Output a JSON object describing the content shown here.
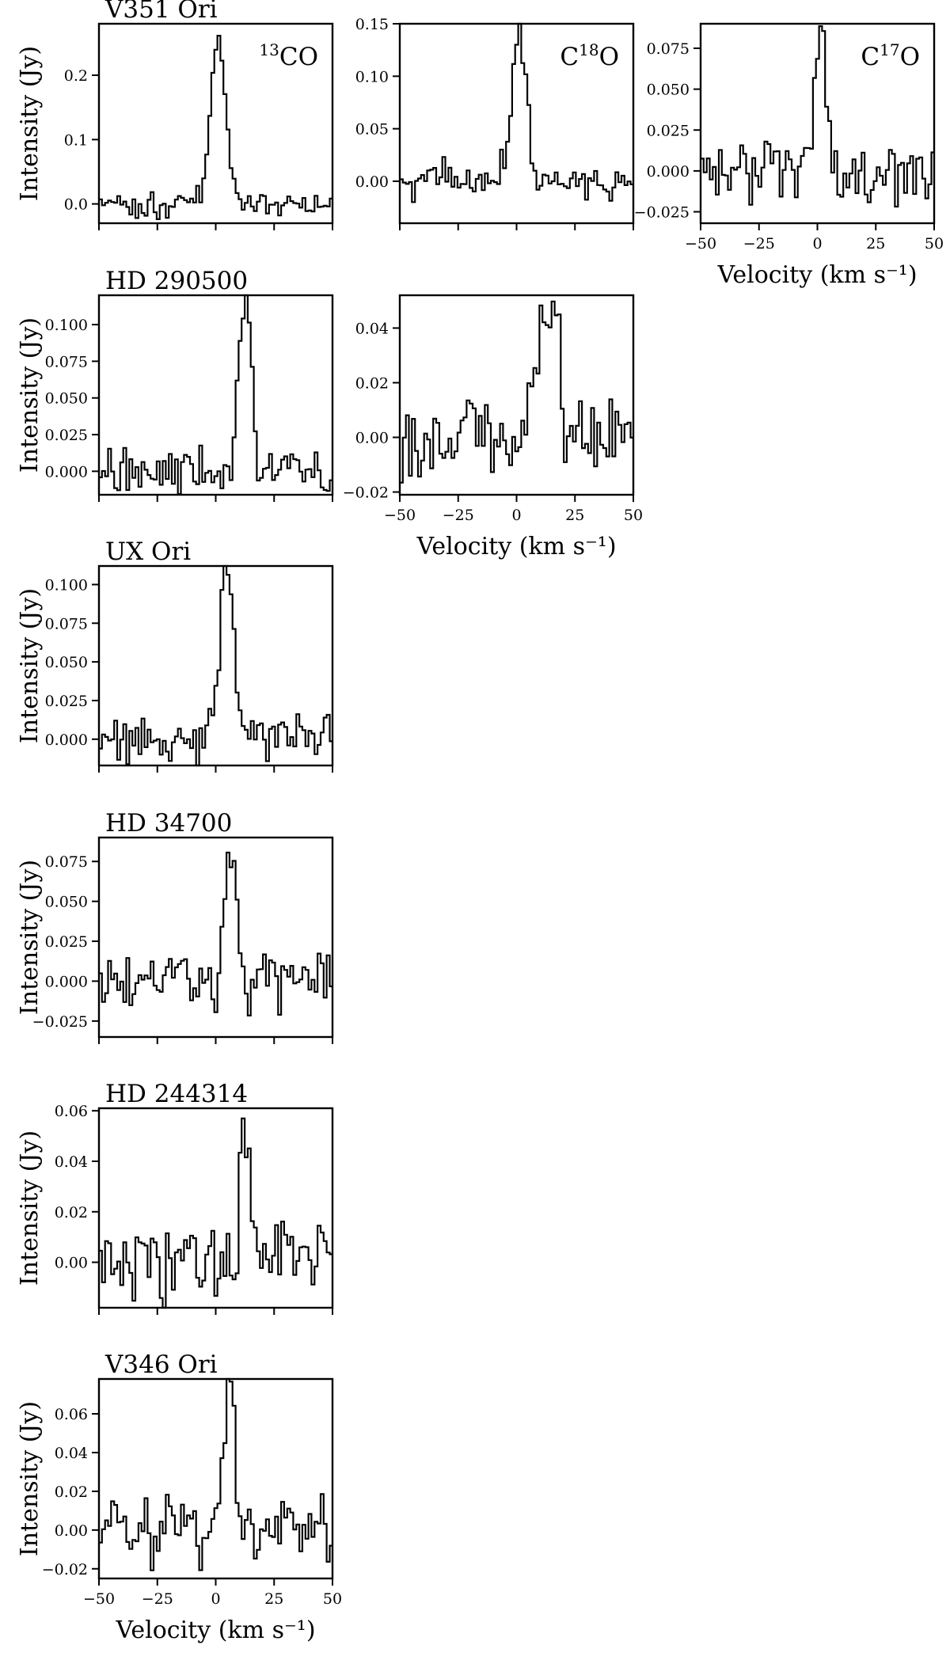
{
  "figure": {
    "ylabel": "Intensity (Jy)",
    "xlabel": "Velocity (km s⁻¹)"
  },
  "chart_data": [
    {
      "type": "line",
      "title": "V351 Ori",
      "line_label": {
        "pre": "13",
        "main": "CO",
        "post": ""
      },
      "xlim": [
        -50,
        50
      ],
      "ylim": [
        -0.03,
        0.28
      ],
      "yticks": [
        "0.0",
        "0.1",
        "0.2"
      ],
      "show_xticklabels": false,
      "show_xlabel": false,
      "series": [
        {
          "peak": 0.262,
          "center": 0.5,
          "width": 3.2,
          "noise": 0.012,
          "base": 0.0,
          "seed": 11
        }
      ]
    },
    {
      "type": "line",
      "title": "",
      "line_label": {
        "pre": "C",
        "main": "18",
        "post": "O"
      },
      "xlim": [
        -50,
        50
      ],
      "ylim": [
        -0.04,
        0.15
      ],
      "yticks": [
        "0.00",
        "0.05",
        "0.10",
        "0.15"
      ],
      "show_xticklabels": false,
      "show_xlabel": false,
      "series": [
        {
          "peak": 0.143,
          "center": 0.5,
          "width": 3.0,
          "noise": 0.011,
          "base": 0.0,
          "seed": 23
        }
      ]
    },
    {
      "type": "line",
      "title": "",
      "line_label": {
        "pre": "C",
        "main": "17",
        "post": "O"
      },
      "xlim": [
        -50,
        50
      ],
      "ylim": [
        -0.032,
        0.09
      ],
      "yticks": [
        "−0.025",
        "0.000",
        "0.025",
        "0.050",
        "0.075"
      ],
      "xticks": [
        "−50",
        "−25",
        "0",
        "25",
        "50"
      ],
      "show_xticklabels": true,
      "show_xlabel": true,
      "series": [
        {
          "peak": 0.084,
          "center": 0.5,
          "width": 2.6,
          "noise": 0.014,
          "base": 0.0,
          "seed": 37
        }
      ]
    },
    {
      "type": "line",
      "title": "HD 290500",
      "line_label": {
        "pre": "",
        "main": "",
        "post": ""
      },
      "xlim": [
        -50,
        50
      ],
      "ylim": [
        -0.016,
        0.12
      ],
      "yticks": [
        "0.000",
        "0.025",
        "0.050",
        "0.075",
        "0.100"
      ],
      "show_xticklabels": false,
      "show_xlabel": false,
      "series": [
        {
          "peak": 0.112,
          "center": 12.0,
          "width": 2.8,
          "noise": 0.011,
          "base": 0.0,
          "seed": 41
        }
      ]
    },
    {
      "type": "line",
      "title": "",
      "line_label": {
        "pre": "",
        "main": "",
        "post": ""
      },
      "xlim": [
        -50,
        50
      ],
      "ylim": [
        -0.021,
        0.052
      ],
      "yticks": [
        "−0.02",
        "0.00",
        "0.02",
        "0.04"
      ],
      "xticks": [
        "−50",
        "−25",
        "0",
        "25",
        "50"
      ],
      "show_xticklabels": true,
      "show_xlabel": true,
      "series": [
        {
          "peak": 0.049,
          "center": 12.0,
          "width": 4.5,
          "noise": 0.011,
          "base": 0.0,
          "seed": 53
        }
      ]
    },
    {
      "type": "line",
      "title": "UX Ori",
      "line_label": {
        "pre": "",
        "main": "",
        "post": ""
      },
      "xlim": [
        -50,
        50
      ],
      "ylim": [
        -0.017,
        0.112
      ],
      "yticks": [
        "0.000",
        "0.025",
        "0.050",
        "0.075",
        "0.100"
      ],
      "show_xticklabels": false,
      "show_xlabel": false,
      "series": [
        {
          "peak": 0.104,
          "center": 4.0,
          "width": 3.2,
          "noise": 0.01,
          "base": 0.0,
          "seed": 67
        }
      ]
    },
    {
      "type": "line",
      "title": "HD 34700",
      "line_label": {
        "pre": "",
        "main": "",
        "post": ""
      },
      "xlim": [
        -50,
        50
      ],
      "ylim": [
        -0.035,
        0.09
      ],
      "yticks": [
        "−0.025",
        "0.000",
        "0.025",
        "0.050",
        "0.075"
      ],
      "show_xticklabels": false,
      "show_xlabel": false,
      "series": [
        {
          "peak": 0.083,
          "center": 6.0,
          "width": 2.5,
          "noise": 0.011,
          "base": 0.0,
          "seed": 71
        }
      ]
    },
    {
      "type": "line",
      "title": "HD 244314",
      "line_label": {
        "pre": "",
        "main": "",
        "post": ""
      },
      "xlim": [
        -50,
        50
      ],
      "ylim": [
        -0.018,
        0.061
      ],
      "yticks": [
        "0.00",
        "0.02",
        "0.04",
        "0.06"
      ],
      "show_xticklabels": false,
      "show_xlabel": false,
      "series": [
        {
          "peak": 0.056,
          "center": 12.0,
          "width": 2.2,
          "noise": 0.012,
          "base": 0.0,
          "seed": 83
        }
      ]
    },
    {
      "type": "line",
      "title": "V346 Ori",
      "line_label": {
        "pre": "",
        "main": "",
        "post": ""
      },
      "xlim": [
        -50,
        50
      ],
      "ylim": [
        -0.025,
        0.078
      ],
      "yticks": [
        "−0.02",
        "0.00",
        "0.02",
        "0.04",
        "0.06"
      ],
      "xticks": [
        "−50",
        "−25",
        "0",
        "25",
        "50"
      ],
      "show_xticklabels": true,
      "show_xlabel": true,
      "series": [
        {
          "peak": 0.074,
          "center": 5.0,
          "width": 2.2,
          "noise": 0.013,
          "base": 0.0,
          "seed": 97
        }
      ]
    }
  ]
}
